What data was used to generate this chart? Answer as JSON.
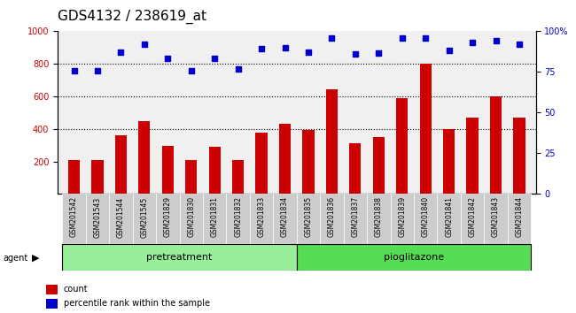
{
  "title": "GDS4132 / 238619_at",
  "samples": [
    "GSM201542",
    "GSM201543",
    "GSM201544",
    "GSM201545",
    "GSM201829",
    "GSM201830",
    "GSM201831",
    "GSM201832",
    "GSM201833",
    "GSM201834",
    "GSM201835",
    "GSM201836",
    "GSM201837",
    "GSM201838",
    "GSM201839",
    "GSM201840",
    "GSM201841",
    "GSM201842",
    "GSM201843",
    "GSM201844"
  ],
  "count_values": [
    210,
    210,
    360,
    450,
    295,
    210,
    290,
    210,
    380,
    430,
    395,
    645,
    310,
    350,
    590,
    800,
    400,
    470,
    600,
    470
  ],
  "percentile_values": [
    76,
    75.5,
    87,
    92,
    83.5,
    76,
    83.5,
    77,
    89.5,
    90,
    87,
    96,
    86,
    86.5,
    96,
    96,
    88,
    93,
    94,
    92
  ],
  "pretreatment_count": 10,
  "pioglitazone_count": 10,
  "pretreatment_label": "pretreatment",
  "pioglitazone_label": "pioglitazone",
  "agent_label": "agent",
  "bar_color": "#cc0000",
  "dot_color": "#0000cc",
  "ylim_left": [
    0,
    1000
  ],
  "ylim_right": [
    0,
    100
  ],
  "yticks_left": [
    200,
    400,
    600,
    800,
    1000
  ],
  "yticks_right": [
    0,
    25,
    50,
    75,
    100
  ],
  "grid_values": [
    400,
    600,
    800
  ],
  "legend_count_label": "count",
  "legend_percentile_label": "percentile rank within the sample",
  "pretreat_bg": "#99ee99",
  "pioglit_bg": "#55dd55",
  "title_fontsize": 11,
  "tick_fontsize": 7,
  "bar_width": 0.5
}
